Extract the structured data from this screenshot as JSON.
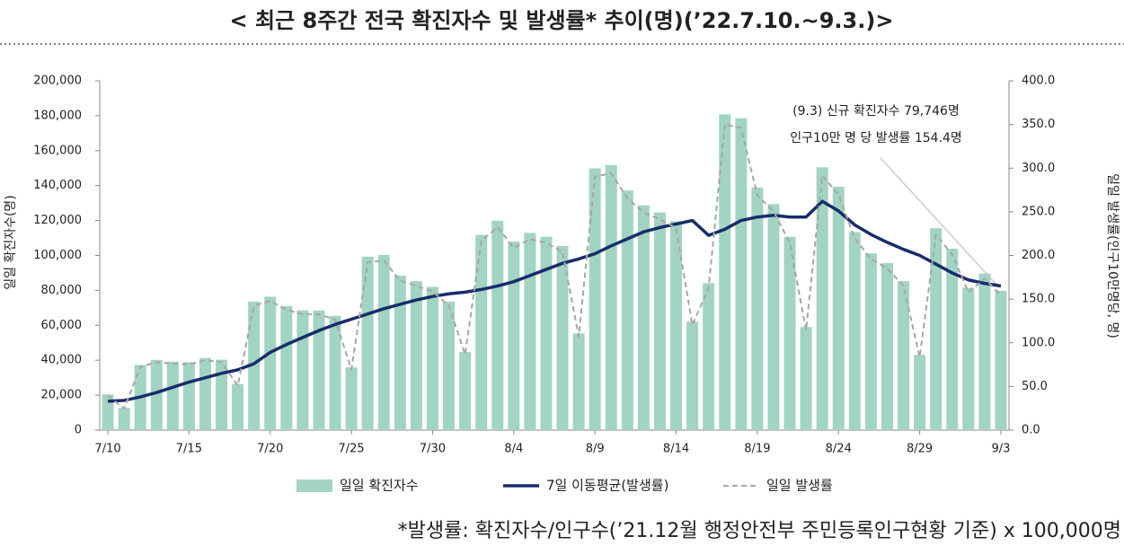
{
  "chart_data": {
    "type": "bar_line",
    "title": "< 최근 8주간 전국 확진자수 및 발생률* 추이(명)(’22.7.10.~9.3.)>",
    "y_label": "일일 확진자수(명)",
    "y2_label": "일일 발생률(인구10만명당, 명)",
    "annotation": [
      "(9.3) 신규 확진자수 79,746명",
      "인구10만 명 당 발생률 154.4명"
    ],
    "footnote": "*발생률: 확진자수/인구수(’21.12월 행정안전부 주민등록인구현황 기준) x 100,000명",
    "categories": [
      "7/10",
      null,
      null,
      null,
      null,
      "7/15",
      null,
      null,
      null,
      null,
      "7/20",
      null,
      null,
      null,
      null,
      "7/25",
      null,
      null,
      null,
      null,
      "7/30",
      null,
      null,
      null,
      null,
      "8/4",
      null,
      null,
      null,
      null,
      "8/9",
      null,
      null,
      null,
      null,
      "8/14",
      null,
      null,
      null,
      null,
      "8/19",
      null,
      null,
      null,
      null,
      "8/24",
      null,
      null,
      null,
      null,
      "8/29",
      null,
      null,
      null,
      null,
      "9/3"
    ],
    "ylim": [
      0,
      200000
    ],
    "yticks": [
      0,
      {
        "value": 20000,
        "label": "20,000"
      },
      {
        "value": 40000,
        "label": "40,000"
      },
      {
        "value": 60000,
        "label": "60,000"
      },
      {
        "value": 80000,
        "label": "80,000"
      },
      {
        "value": 100000,
        "label": "100,000"
      },
      {
        "value": 120000,
        "label": "120,000"
      },
      {
        "value": 140000,
        "label": "140,000"
      },
      {
        "value": 160000,
        "label": "160,000"
      },
      {
        "value": 180000,
        "label": "180,000"
      },
      {
        "value": 200000,
        "label": "200,000"
      }
    ],
    "y2lim": [
      0,
      400
    ],
    "y2ticks": [
      {
        "value": 0,
        "label": "0.0"
      },
      {
        "value": 50,
        "label": "50.0"
      },
      {
        "value": 100,
        "label": "100.0"
      },
      {
        "value": 150,
        "label": "150.0"
      },
      {
        "value": 200,
        "label": "200.0"
      },
      {
        "value": 250,
        "label": "250.0"
      },
      {
        "value": 300,
        "label": "300.0"
      },
      {
        "value": 350,
        "label": "350.0"
      },
      {
        "value": 400,
        "label": "400.0"
      }
    ],
    "series": [
      {
        "name": "일일 확진자수",
        "kind": "bar",
        "color": "#a3d3c3",
        "values": [
          20400,
          12700,
          37300,
          40200,
          39200,
          38900,
          41300,
          40300,
          26300,
          73600,
          76400,
          71100,
          68600,
          68500,
          65400,
          35900,
          99300,
          100300,
          88400,
          85300,
          82000,
          73600,
          44700,
          111800,
          119900,
          107900,
          112900,
          110700,
          105500,
          55300,
          149900,
          151800,
          137200,
          128700,
          124600,
          119600,
          62100,
          84100,
          180800,
          178600,
          138800,
          129400,
          110700,
          59000,
          150500,
          139300,
          113300,
          101200,
          95600,
          85300,
          43100,
          115600,
          103900,
          81500,
          89600,
          79746
        ]
      },
      {
        "name": "7일 이동평균(발생률)",
        "kind": "line",
        "axis": "y2",
        "color": "#172d6b",
        "values": [
          33,
          34,
          38,
          43,
          49,
          55,
          60,
          65,
          69,
          76,
          89,
          98,
          106,
          114,
          121,
          127,
          133,
          139,
          144,
          149,
          153,
          156,
          158,
          161,
          165,
          170,
          177,
          184,
          191,
          196,
          202,
          211,
          219,
          227,
          232,
          236,
          240,
          223,
          230,
          240,
          244,
          246,
          244,
          244,
          262,
          251,
          235,
          224,
          215,
          207,
          200,
          190,
          180,
          172,
          168,
          165
        ]
      },
      {
        "name": "일일 발생률",
        "kind": "dashed",
        "axis": "y2",
        "color": "#a6a6a6",
        "values": [
          39.5,
          24.6,
          72.2,
          77.8,
          75.9,
          75.3,
          80.0,
          78.0,
          50.9,
          142.5,
          147.9,
          137.7,
          132.8,
          132.6,
          126.6,
          69.5,
          192.3,
          194.2,
          171.2,
          165.2,
          158.8,
          142.5,
          86.6,
          216.5,
          232.2,
          208.9,
          218.6,
          214.4,
          204.3,
          107.1,
          290.3,
          294.0,
          265.7,
          249.2,
          241.3,
          231.6,
          120.3,
          162.9,
          350.1,
          345.9,
          268.8,
          250.6,
          214.4,
          114.3,
          291.4,
          269.8,
          219.4,
          196.0,
          185.1,
          165.2,
          83.5,
          223.9,
          201.2,
          157.8,
          173.5,
          154.4
        ]
      }
    ]
  }
}
